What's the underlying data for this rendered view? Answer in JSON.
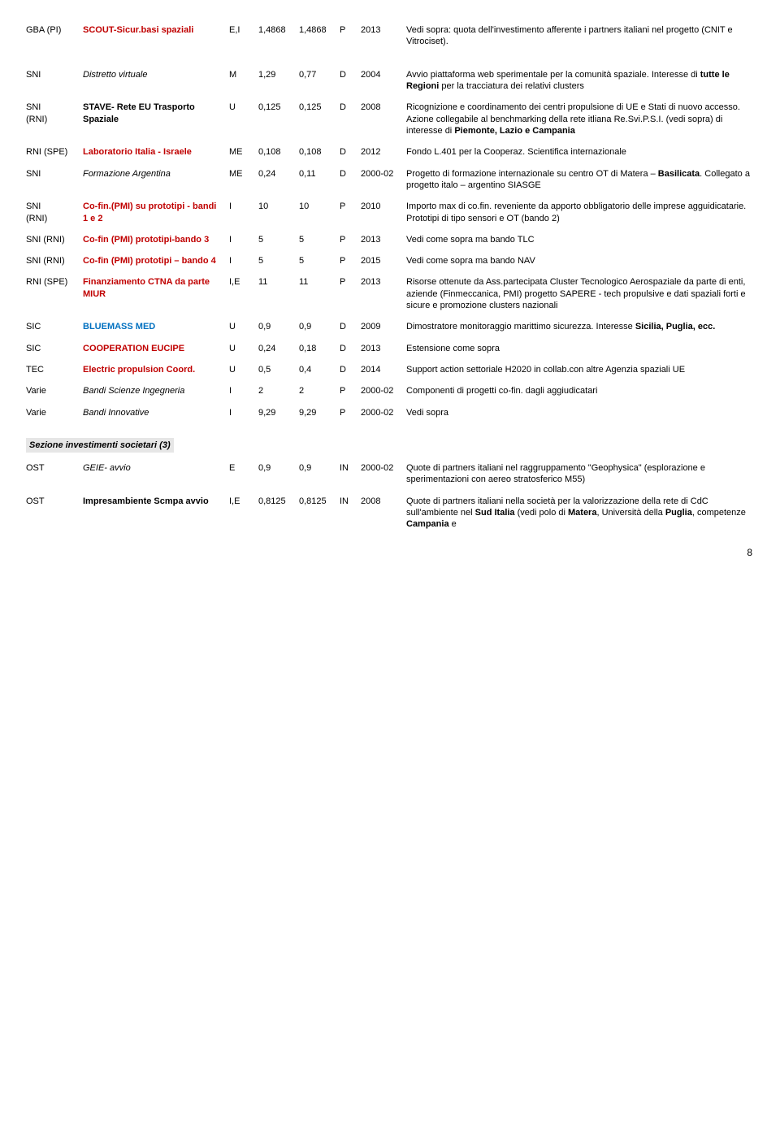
{
  "rows": [
    {
      "c1": "GBA (PI)",
      "c1_cls": "black",
      "c2": "SCOUT-Sicur.basi spaziali",
      "c2_cls": "red bold",
      "c3": "E,I",
      "c4": "1,4868",
      "c5": "1,4868",
      "c6": "P",
      "c7": "2013",
      "c8": "Vedi sopra: quota dell'investimento afferente i partners italiani nel progetto (CNIT e Vitrociset)."
    },
    {
      "spacer": true
    },
    {
      "c1": "SNI",
      "c2": "Distretto virtuale",
      "c2_cls": "italic",
      "c3": "M",
      "c4": "1,29",
      "c5": "0,77",
      "c6": "D",
      "c7": "2004",
      "c8": "Avvio piattaforma web sperimentale per la comunità spaziale. Interesse di <b>tutte le Regioni</b> per la tracciatura dei relativi clusters"
    },
    {
      "c1": "SNI<br>(RNI)",
      "c2": "STAVE- Rete EU Trasporto Spaziale",
      "c2_cls": "bold",
      "c3": "U",
      "c4": "0,125",
      "c5": "0,125",
      "c6": "D",
      "c7": "2008",
      "c8": "Ricognizione e coordinamento dei centri propulsione di UE e Stati di nuovo accesso. Azione collegabile al benchmarking della rete itliana Re.Svi.P.S.I. (vedi sopra) di interesse di <b>Piemonte, Lazio e Campania</b>"
    },
    {
      "c1": "RNI (SPE)",
      "c2": "Laboratorio Italia - Israele",
      "c2_cls": "red bold",
      "c3": "ME",
      "c4": "0,108",
      "c5": "0,108",
      "c6": "D",
      "c7": "2012",
      "c8": "Fondo L.401 per la Cooperaz. Scientifica internazionale"
    },
    {
      "c1": "SNI",
      "c2": "Formazione Argentina",
      "c2_cls": "italic",
      "c3": "ME",
      "c4": "0,24",
      "c5": "0,11",
      "c6": "D",
      "c7": "2000-02",
      "c8": "Progetto di formazione internazionale su centro OT di Matera – <b>Basilicata</b>. Collegato a progetto italo – argentino SIASGE"
    },
    {
      "c1": "SNI<br>(RNI)",
      "c2": "Co-fin.(PMI) su prototipi - bandi 1 e 2",
      "c2_cls": "red bold",
      "c3": "I",
      "c4": "10",
      "c5": "10",
      "c6": "P",
      "c7": "2010",
      "c8": "Importo max di co.fin. reveniente da apporto obbligatorio delle imprese agguidicatarie. Prototipi di tipo sensori e OT (bando 2)"
    },
    {
      "c1": "SNI (RNI)",
      "c2": "Co-fin (PMI) prototipi-bando 3",
      "c2_cls": "red bold",
      "c3": "I",
      "c4": "5",
      "c5": "5",
      "c6": "P",
      "c7": "2013",
      "c8": "Vedi come sopra ma bando TLC"
    },
    {
      "c1": "SNI (RNI)",
      "c2": "Co-fin (PMI) prototipi – bando 4",
      "c2_cls": "red bold",
      "c3": "I",
      "c4": "5",
      "c5": "5",
      "c6": "P",
      "c7": "2015",
      "c8": "Vedi come sopra ma bando NAV"
    },
    {
      "c1": "RNI (SPE)",
      "c2": "Finanziamento CTNA  da parte MIUR",
      "c2_cls": "red bold",
      "c3": "I,E",
      "c4": "11",
      "c5": "11",
      "c6": "P",
      "c7": "2013",
      "c8": "Risorse ottenute da Ass.partecipata Cluster Tecnologico Aerospaziale da parte di enti, aziende (Finmeccanica, PMI) progetto SAPERE -  tech propulsive e dati spaziali forti e sicure e promozione clusters nazionali"
    },
    {
      "c1": "SIC",
      "c2": "BLUEMASS MED",
      "c2_cls": "blue bold",
      "c3": "U",
      "c4": "0,9",
      "c5": "0,9",
      "c6": "D",
      "c7": "2009",
      "c8": "Dimostratore monitoraggio marittimo sicurezza. Interesse <b>Sicilia, Puglia, ecc.</b>"
    },
    {
      "c1": "SIC",
      "c2": "COOPERATION EUCIPE",
      "c2_cls": "red bold",
      "c3": "U",
      "c4": "0,24",
      "c5": "0,18",
      "c6": "D",
      "c7": "2013",
      "c8": "Estensione come sopra"
    },
    {
      "c1": "TEC",
      "c2": "Electric propulsion Coord.",
      "c2_cls": "red bold",
      "c3": "U",
      "c4": "0,5",
      "c5": "0,4",
      "c6": "D",
      "c7": "2014",
      "c8": "Support action settoriale H2020 in collab.con altre Agenzia spaziali UE"
    },
    {
      "c1": "Varie",
      "c2": "Bandi Scienze Ingegneria",
      "c2_cls": "italic",
      "c3": "I",
      "c4": "2",
      "c5": "2",
      "c6": "P",
      "c7": "2000-02",
      "c8": "Componenti di progetti co-fin. dagli aggiudicatari"
    },
    {
      "c1": "Varie",
      "c2": "Bandi Innovative",
      "c2_cls": "italic",
      "c3": "I",
      "c4": "9,29",
      "c5": "9,29",
      "c6": "P",
      "c7": "2000-02",
      "c8": "Vedi sopra"
    }
  ],
  "section2_label": "Sezione investimenti societari  (3)",
  "rows2": [
    {
      "c1": "OST",
      "c2": "GEIE- avvio",
      "c2_cls": "italic",
      "c3": "E",
      "c4": "0,9",
      "c5": "0,9",
      "c6": "IN",
      "c7": "2000-02",
      "c8": "Quote di partners italiani nel raggruppamento \"Geophysica\" (esplorazione e sperimentazioni con aereo  stratosferico M55)"
    },
    {
      "c1": "OST",
      "c2": "Impresambiente Scmpa avvio",
      "c2_cls": "bold",
      "c3": "I,E",
      "c4": "0,8125",
      "c5": "0,8125",
      "c6": "IN",
      "c7": "2008",
      "c8": "Quote di partners italiani nella società per la valorizzazione della rete di CdC sull'ambiente nel <b>Sud Italia</b> (vedi polo di <b>Matera</b>, Università della <b>Puglia</b>, competenze <b>Campania</b> e"
    }
  ],
  "page_number": "8"
}
